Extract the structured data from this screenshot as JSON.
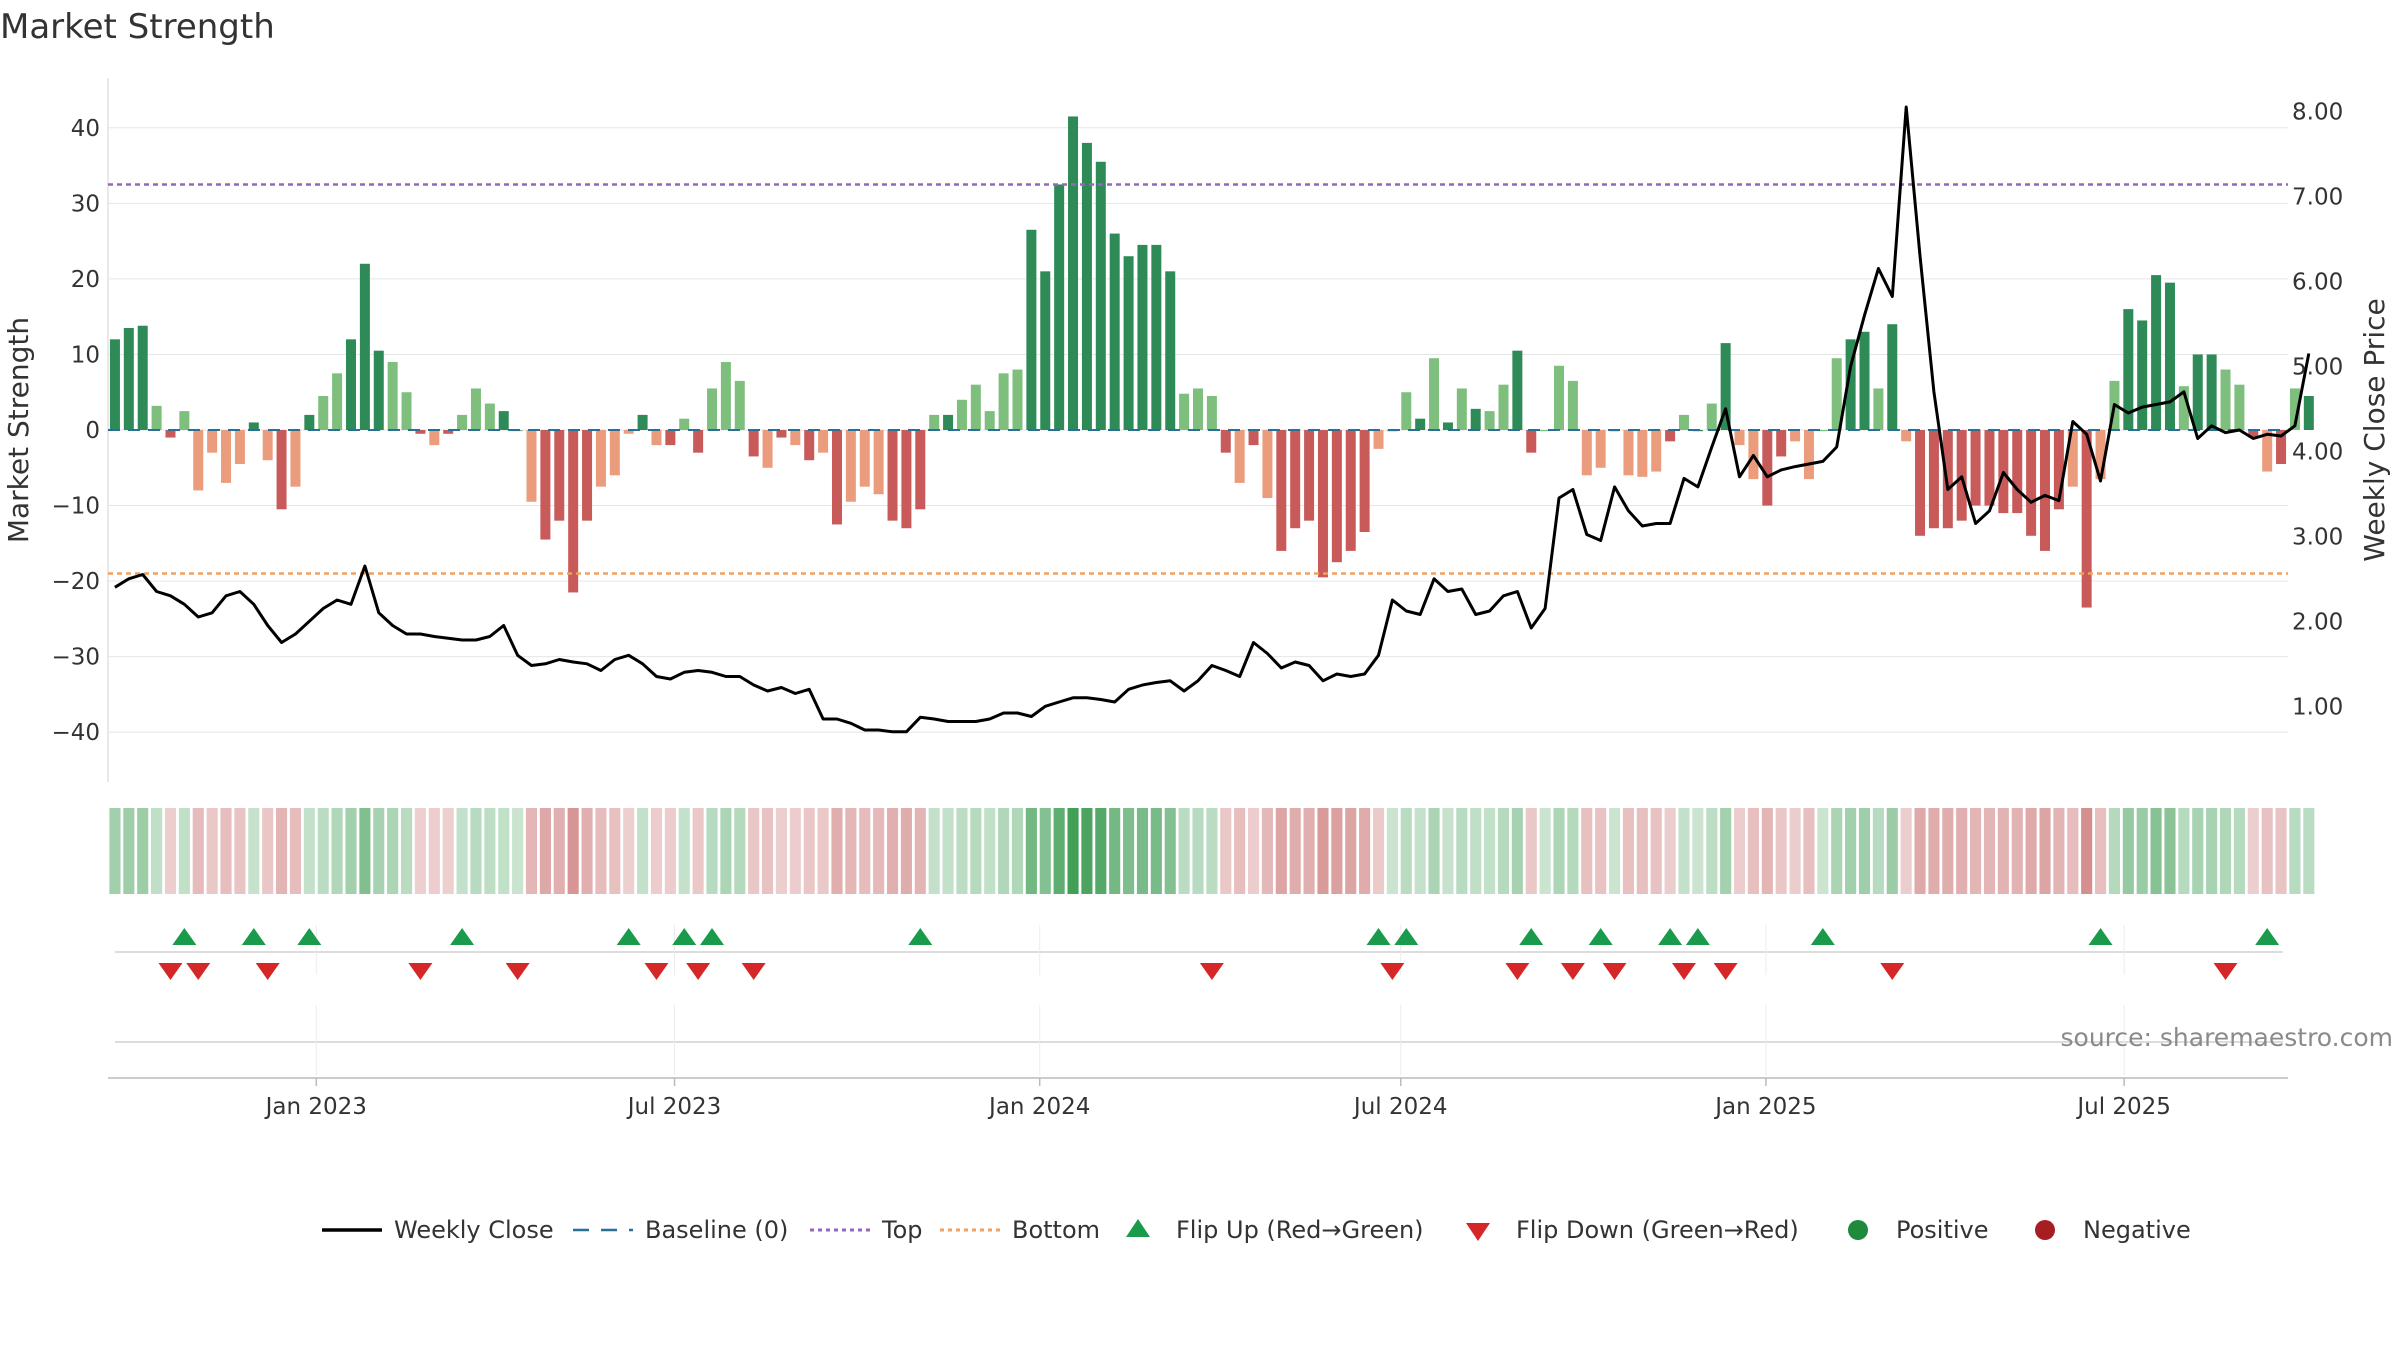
{
  "chart_data": {
    "type": "bar",
    "title": "Market Strength",
    "ylabel": "Market Strength",
    "y2label": "Weekly Close Price",
    "ylim": [
      -45,
      45
    ],
    "y2lim": [
      0.25,
      8.25
    ],
    "yticks": [
      "40",
      "30",
      "20",
      "10",
      "0",
      "−10",
      "−20",
      "−30",
      "−40"
    ],
    "ytick_values": [
      40,
      30,
      20,
      10,
      0,
      -10,
      -20,
      -30,
      -40
    ],
    "y2ticks": [
      "8.00",
      "7.00",
      "6.00",
      "5.00",
      "4.00",
      "3.00",
      "2.00",
      "1.00"
    ],
    "y2tick_values": [
      8,
      7,
      6,
      5,
      4,
      3,
      2,
      1
    ],
    "xticks": [
      "Jan 2023",
      "Jul 2023",
      "Jan 2024",
      "Jul 2024",
      "Jan 2025",
      "Jul 2025"
    ],
    "xtick_weeks": [
      14.5,
      40.3,
      66.6,
      92.6,
      118.9,
      144.7
    ],
    "top_threshold": 32.5,
    "bottom_threshold": -19,
    "weeks": 157,
    "strength": [
      12,
      13.5,
      13.8,
      3.2,
      -1,
      2.5,
      -8,
      -3,
      -7,
      -4.5,
      1,
      -4,
      -10.5,
      -7.5,
      2,
      4.5,
      7.5,
      12,
      22,
      10.5,
      9,
      5,
      -0.5,
      -2,
      -0.5,
      2,
      5.5,
      3.5,
      2.5,
      0,
      -9.5,
      -14.5,
      -12,
      -21.5,
      -12,
      -7.5,
      -6,
      -0.5,
      2,
      -2,
      -2,
      1.5,
      -3,
      5.5,
      9,
      6.5,
      -3.5,
      -5,
      -1,
      -2,
      -4,
      -3,
      -12.5,
      -9.5,
      -7.5,
      -8.5,
      -12,
      -13,
      -10.5,
      2,
      2,
      4,
      6,
      2.5,
      7.5,
      8,
      26.5,
      21,
      32.5,
      41.5,
      38,
      35.5,
      26,
      23,
      24.5,
      24.5,
      21,
      4.8,
      5.5,
      4.5,
      -3,
      -7,
      -2,
      -9,
      -16,
      -13,
      -12,
      -19.5,
      -17.5,
      -16,
      -13.5,
      -2.5,
      0,
      5,
      1.5,
      9.5,
      1,
      5.5,
      2.8,
      2.5,
      6,
      10.5,
      -3,
      0,
      8.5,
      6.5,
      -6,
      -5,
      0,
      -6,
      -6.2,
      -5.5,
      -1.5,
      2,
      0,
      3.5,
      11.5,
      -2,
      -6.5,
      -10,
      -3.5,
      -1.5,
      -6.5,
      0,
      9.5,
      12,
      13,
      5.5,
      14,
      -1.5,
      -14,
      -13,
      -13,
      -12,
      -10,
      -10,
      -11,
      -11,
      -14,
      -16,
      -10.5,
      -7.5,
      -23.5,
      -6.5,
      6.5,
      16,
      14.5,
      20.5,
      19.5,
      5.8,
      10,
      10,
      8,
      6,
      -1,
      -5.5,
      -4.5,
      5.5,
      4.5
    ],
    "close": [
      2.4,
      2.5,
      2.55,
      2.35,
      2.3,
      2.2,
      2.05,
      2.1,
      2.3,
      2.35,
      2.2,
      1.95,
      1.75,
      1.85,
      2,
      2.15,
      2.25,
      2.2,
      2.65,
      2.1,
      1.95,
      1.85,
      1.85,
      1.82,
      1.8,
      1.78,
      1.78,
      1.82,
      1.95,
      1.6,
      1.48,
      1.5,
      1.55,
      1.52,
      1.5,
      1.42,
      1.55,
      1.6,
      1.5,
      1.35,
      1.32,
      1.4,
      1.42,
      1.4,
      1.35,
      1.35,
      1.25,
      1.18,
      1.22,
      1.15,
      1.2,
      0.85,
      0.85,
      0.8,
      0.72,
      0.72,
      0.7,
      0.7,
      0.87,
      0.85,
      0.82,
      0.82,
      0.82,
      0.85,
      0.92,
      0.92,
      0.88,
      1,
      1.05,
      1.1,
      1.1,
      1.08,
      1.05,
      1.2,
      1.25,
      1.28,
      1.3,
      1.18,
      1.3,
      1.48,
      1.42,
      1.35,
      1.75,
      1.62,
      1.45,
      1.52,
      1.48,
      1.3,
      1.38,
      1.35,
      1.38,
      1.6,
      2.25,
      2.12,
      2.08,
      2.5,
      2.35,
      2.38,
      2.08,
      2.12,
      2.3,
      2.35,
      1.92,
      2.15,
      3.45,
      3.55,
      3.02,
      2.95,
      3.58,
      3.3,
      3.12,
      3.15,
      3.15,
      3.68,
      3.58,
      4.05,
      4.5,
      3.7,
      3.95,
      3.7,
      3.78,
      3.82,
      3.85,
      3.88,
      4.05,
      5,
      5.6,
      6.15,
      5.82,
      8.05,
      6.3,
      4.7,
      3.55,
      3.7,
      3.15,
      3.3,
      3.75,
      3.55,
      3.4,
      3.48,
      3.42,
      4.35,
      4.2,
      3.65,
      4.55,
      4.45,
      4.52,
      4.55,
      4.58,
      4.7,
      4.15,
      4.3,
      4.22,
      4.25,
      4.15,
      4.2,
      4.18,
      4.3,
      5.15
    ],
    "flip_up_weeks": [
      5,
      10,
      14,
      25,
      37,
      41,
      43,
      58,
      91,
      93,
      102,
      107,
      112,
      114,
      123,
      143,
      155
    ],
    "flip_down_weeks": [
      4,
      6,
      11,
      22,
      29,
      39,
      42,
      46,
      79,
      92,
      101,
      105,
      108,
      113,
      116,
      128,
      152
    ],
    "legend": [
      {
        "key": "close",
        "label": "Weekly Close",
        "color": "#000000"
      },
      {
        "key": "baseline",
        "label": "Baseline (0)",
        "color": "#2a6f97"
      },
      {
        "key": "top",
        "label": "Top",
        "color": "#9467bd"
      },
      {
        "key": "bottom",
        "label": "Bottom",
        "color": "#f0a060"
      },
      {
        "key": "flip_up",
        "label": "Flip Up (Red→Green)",
        "color": "#1a9a4b"
      },
      {
        "key": "flip_down",
        "label": "Flip Down (Green→Red)",
        "color": "#d62728"
      },
      {
        "key": "positive",
        "label": "Positive",
        "color": "#1f8a3b"
      },
      {
        "key": "negative",
        "label": "Negative",
        "color": "#a61e22"
      }
    ],
    "legend_position": "bottom",
    "source": "source: sharemaestro.com",
    "colors": {
      "pos_dark": "#2e8b57",
      "pos_light": "#7ebf7e",
      "neg_dark": "#c85a5a",
      "neg_light": "#eb9c7c",
      "price": "#000000",
      "grid": "#e6e6e6"
    }
  }
}
